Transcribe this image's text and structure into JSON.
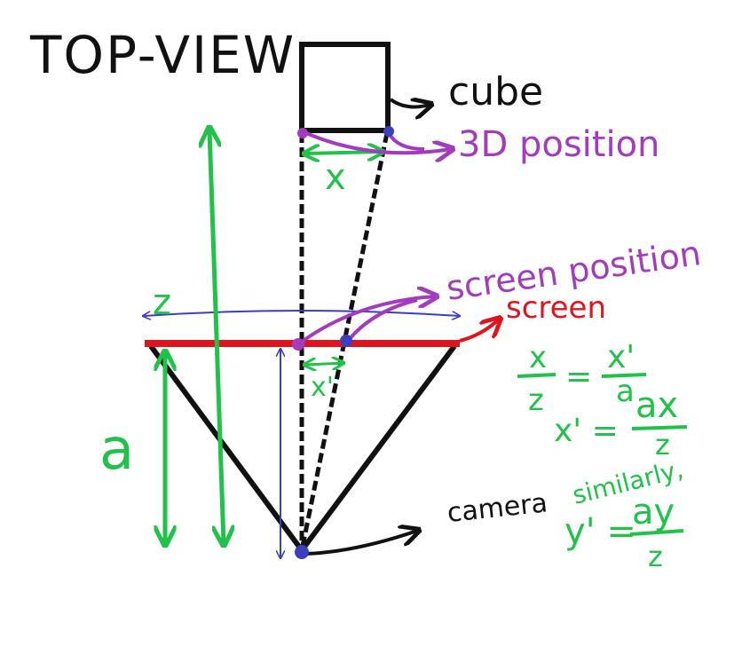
{
  "title": "TOP-VIEW",
  "labels": {
    "cube": "cube",
    "position_3d": "3D position",
    "screen_position": "screen position",
    "screen": "screen",
    "camera": "camera",
    "x": "x",
    "x_prime": "x'",
    "z": "z",
    "a": "a"
  },
  "equations": {
    "ratio_left_num": "x",
    "ratio_left_den": "z",
    "equals": "=",
    "ratio_right_num": "x'",
    "ratio_right_den": "a",
    "result_lhs": "x' =",
    "result_num": "ax",
    "result_den": "z",
    "similarly": "similarly,",
    "y_lhs": "y' =",
    "y_num": "ay",
    "y_den": "z"
  },
  "colors": {
    "black": "#111111",
    "green": "#22c24a",
    "purple": "#a23bbd",
    "blue": "#3a3fbf",
    "red": "#e0141c"
  }
}
